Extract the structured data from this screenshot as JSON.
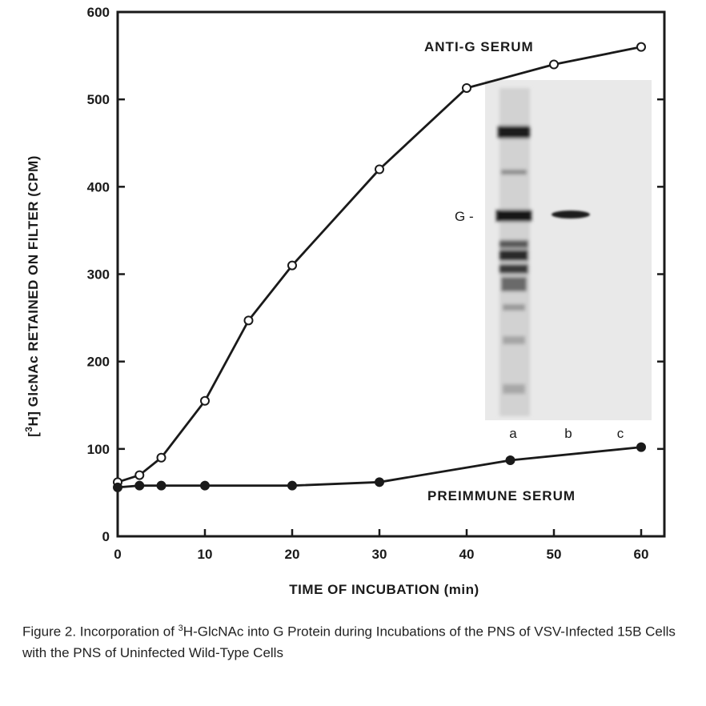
{
  "chart_data": {
    "type": "line",
    "xlabel": "TIME OF INCUBATION (min)",
    "ylabel_prefix": "[",
    "ylabel_sup": "3",
    "ylabel_rest": "H] GlcNAc RETAINED ON FILTER (CPM)",
    "xlim": [
      0,
      60
    ],
    "ylim": [
      0,
      600
    ],
    "xticks": [
      "0",
      "10",
      "20",
      "30",
      "40",
      "50",
      "60"
    ],
    "yticks": [
      "0",
      "100",
      "200",
      "300",
      "400",
      "500",
      "600"
    ],
    "grid": false,
    "series": [
      {
        "name": "ANTI-G SERUM",
        "marker": "open-circle",
        "x": [
          0,
          2.5,
          5,
          10,
          15,
          20,
          30,
          40,
          50,
          60
        ],
        "y": [
          62,
          70,
          90,
          155,
          247,
          310,
          420,
          513,
          540,
          560
        ]
      },
      {
        "name": "PREIMMUNE SERUM",
        "marker": "filled-circle",
        "x": [
          0,
          2.5,
          5,
          10,
          20,
          30,
          45,
          60
        ],
        "y": [
          56,
          58,
          58,
          58,
          58,
          62,
          87,
          102
        ]
      }
    ],
    "inset": {
      "band_label": "G -",
      "lane_labels": [
        "a",
        "b",
        "c"
      ]
    }
  },
  "caption": {
    "prefix": "Figure 2. Incorporation of ",
    "sup": "3",
    "rest": "H-GlcNAc into G Protein during Incubations of the PNS of VSV-Infected 15B Cells with the PNS of Uninfected Wild-Type Cells"
  }
}
